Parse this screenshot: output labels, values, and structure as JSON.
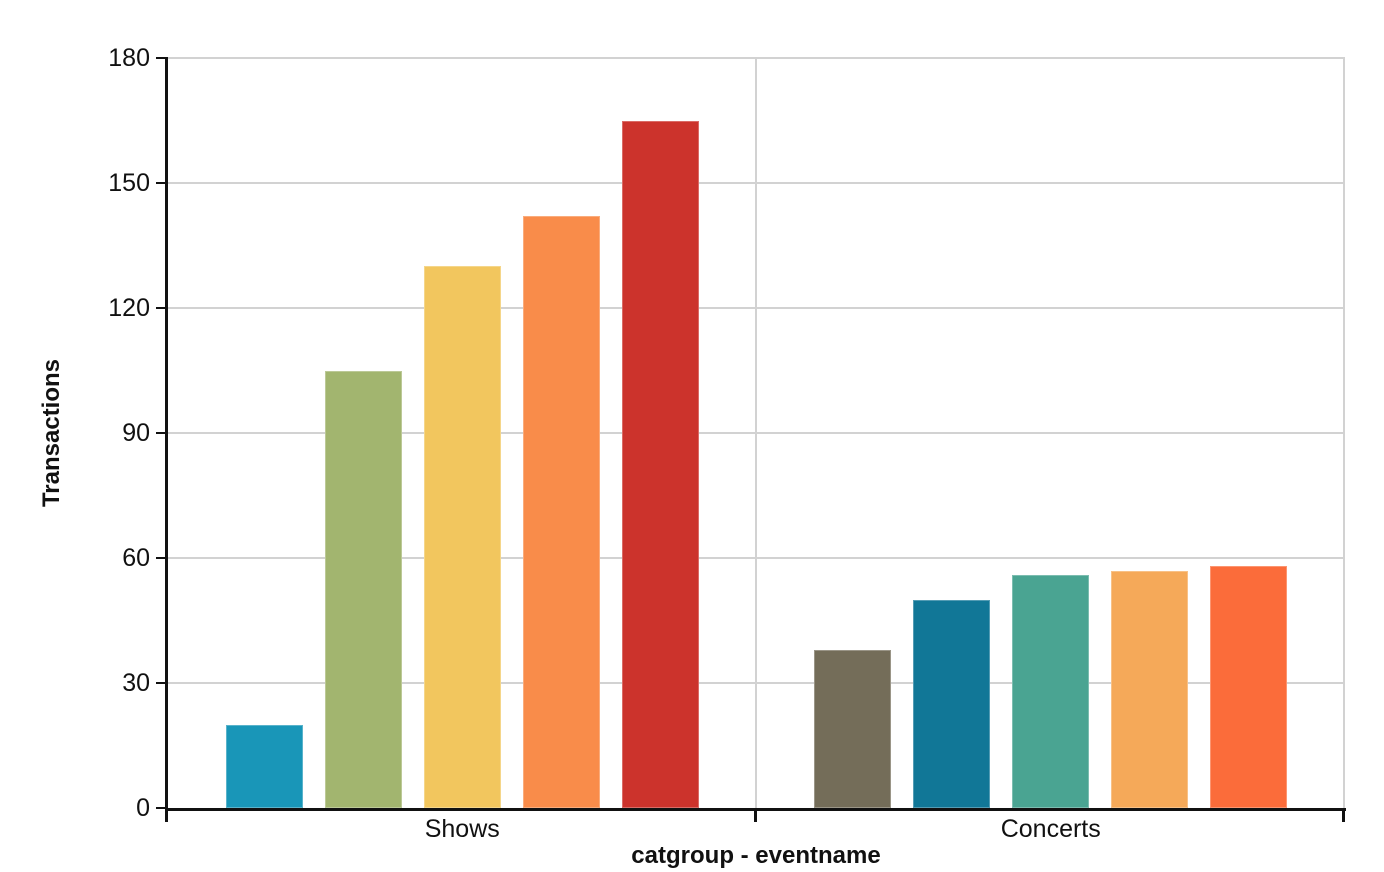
{
  "chart_data": {
    "type": "bar",
    "title": "",
    "xlabel": "catgroup - eventname",
    "ylabel": "Transactions",
    "ylim": [
      0,
      180
    ],
    "yticks": [
      0,
      30,
      60,
      90,
      120,
      150,
      180
    ],
    "grid": true,
    "legend": null,
    "categories": [
      "Shows",
      "Concerts"
    ],
    "groups": [
      {
        "category": "Shows",
        "values": [
          20,
          105,
          130,
          142,
          165
        ],
        "colors": [
          "#1996b8",
          "#a2b56f",
          "#f2c65e",
          "#f98c4a",
          "#cc332c"
        ]
      },
      {
        "category": "Concerts",
        "values": [
          38,
          50,
          56,
          57,
          58
        ],
        "colors": [
          "#746d59",
          "#117797",
          "#4aa492",
          "#f5a959",
          "#fb6c3a"
        ]
      }
    ]
  },
  "colors": {
    "axis": "#111111",
    "gridline": "#d2d2d2",
    "background": "#ffffff"
  }
}
